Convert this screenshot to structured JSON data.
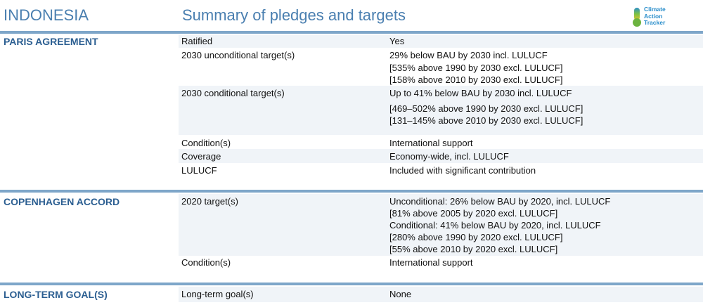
{
  "header": {
    "country": "INDONESIA",
    "subtitle": "Summary of pledges and targets",
    "logo_lines": [
      "Climate",
      "Action",
      "Tracker"
    ]
  },
  "sections": {
    "paris": {
      "title": "PARIS AGREEMENT",
      "ratified_label": "Ratified",
      "ratified_value": "Yes",
      "uncond_label": "2030 unconditional target(s)",
      "uncond_values": [
        "29% below BAU by 2030 incl. LULUCF",
        "[535% above 1990 by 2030 excl. LULUCF]",
        "[158% above 2010 by 2030 excl. LULUCF]"
      ],
      "cond_label": "2030 conditional target(s)",
      "cond_values": [
        "Up to 41% below BAU by 2030 incl. LULUCF",
        "[469–502% above 1990 by 2030 excl. LULUCF]",
        "[131–145% above 2010 by 2030 excl. LULUCF]"
      ],
      "condition_label": "Condition(s)",
      "condition_value": "International support",
      "coverage_label": "Coverage",
      "coverage_value": "Economy-wide, incl. LULUCF",
      "lulucf_label": "LULUCF",
      "lulucf_value": "Included with significant contribution"
    },
    "copenhagen": {
      "title": "COPENHAGEN ACCORD",
      "target_label": "2020 target(s)",
      "target_values": [
        "Unconditional: 26% below BAU by 2020, incl. LULUCF",
        "[81%  above 2005 by 2020 excl. LULUCF]",
        "Conditional: 41% below BAU by 2020, incl. LULUCF",
        "[280%  above 1990 by 2020 excl. LULUCF]",
        "[55%  above 2010 by 2020 excl. LULUCF]"
      ],
      "condition_label": "Condition(s)",
      "condition_value": "International support"
    },
    "longterm": {
      "title": "LONG-TERM GOAL(S)",
      "goal_label": "Long-term goal(s)",
      "goal_value": "None"
    }
  },
  "colors": {
    "accent": "#4a7fb0",
    "section": "#2b5e91",
    "bar": "#7ea6c9",
    "shade": "#f0f4f8"
  }
}
